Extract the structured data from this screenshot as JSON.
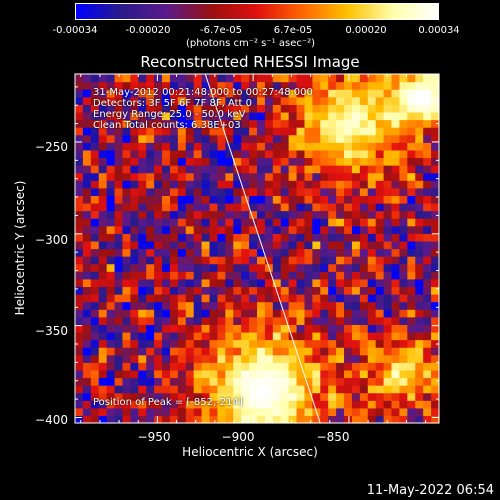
{
  "colorbar": {
    "ticks": [
      "-0.00034",
      "-0.00020",
      "-6.7e-05",
      "6.7e-05",
      "0.00020",
      "0.00034"
    ],
    "units_line": "(photons cm⁻² s⁻¹ asec⁻²)",
    "colors": [
      "#0000ff",
      "#2a1a8a",
      "#5a1a8a",
      "#9a1010",
      "#e01010",
      "#ff6600",
      "#ffc000",
      "#ffffaa",
      "#ffffff"
    ]
  },
  "chart_data": {
    "type": "heatmap",
    "title": "Reconstructed RHESSI Image",
    "xlabel": "Heliocentric X (arcsec)",
    "ylabel": "Heliocentric Y (arcsec)",
    "xlim": [
      -993,
      -803
    ],
    "ylim": [
      -403,
      -213
    ],
    "x_ticks": [
      -950,
      -900,
      -850
    ],
    "y_ticks": [
      -250,
      -300,
      -350,
      -400
    ],
    "x_tick_labels": [
      "−950",
      "−900",
      "−850"
    ],
    "y_tick_labels": [
      "−250",
      "−300",
      "−350",
      "−400"
    ],
    "colorbar_range": [
      -0.00034,
      0.00034
    ],
    "limb_line": [
      [
        -925,
        -213
      ],
      [
        -865,
        -403
      ]
    ],
    "peak": [
      -852,
      -214
    ],
    "sources": [
      {
        "label": "lower-center",
        "x": -895,
        "y": -385,
        "sigma": 25,
        "amplitude": 1.0
      },
      {
        "label": "upper-right",
        "x": -850,
        "y": -240,
        "sigma": 22,
        "amplitude": 0.85
      },
      {
        "label": "top-right",
        "x": -810,
        "y": -225,
        "sigma": 12,
        "amplitude": 0.9
      },
      {
        "label": "lower-right",
        "x": -820,
        "y": -375,
        "sigma": 15,
        "amplitude": 0.7
      }
    ]
  },
  "annotations": {
    "time_range": "31-May-2012 00:21:48.000 to 00:27:48.000",
    "detectors": "Detectors: 3F 5F 6F 7F 8F, Att 0",
    "energy": "Energy Range: 25.0 - 50.0 keV",
    "clean": "Clean    Total counts: 6.38E+03",
    "peak_text": "Position of Peak = [-852,-214]"
  },
  "timestamp": "11-May-2022 06:54"
}
